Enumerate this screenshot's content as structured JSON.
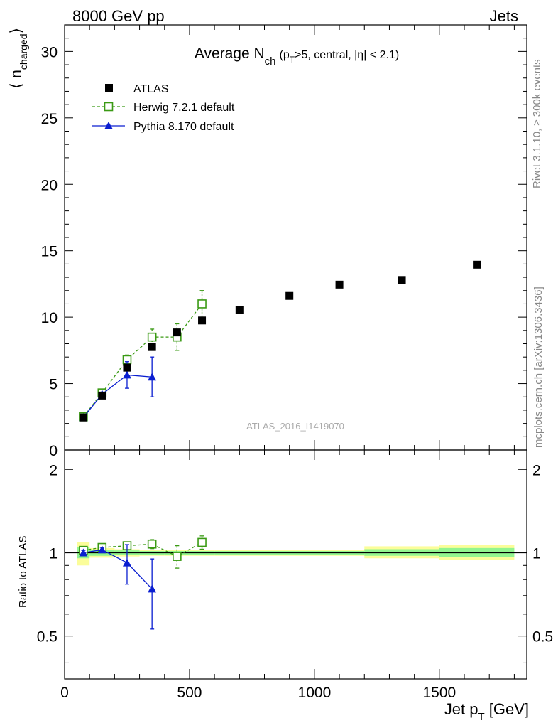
{
  "header": {
    "left": "8000 GeV pp",
    "right": "Jets"
  },
  "side_texts": {
    "rivet": "Rivet 3.1.10, ≥ 300k events",
    "mcplots": "mcplots.cern.ch [arXiv:1306.3436]"
  },
  "chart_data": [
    {
      "type": "scatter",
      "title": {
        "main": "Average N",
        "sub": "ch",
        "p": "(p",
        "psub": "T",
        "rest": ">5, central, |η| < 2.1)"
      },
      "watermark": "ATLAS_2016_I1419070",
      "ylabel": {
        "pre": "⟨ n",
        "sub": "charged",
        "post": "⟩"
      },
      "xlim": [
        0,
        1850
      ],
      "ylim": [
        0,
        32
      ],
      "yticks": [
        0,
        5,
        10,
        15,
        20,
        25,
        30
      ],
      "legend_position": "top-left",
      "series": [
        {
          "name": "ATLAS",
          "color": "#000000",
          "marker": "filled-square",
          "line": "none",
          "x": [
            75,
            150,
            250,
            350,
            450,
            550,
            700,
            900,
            1100,
            1350,
            1650
          ],
          "y": [
            2.45,
            4.1,
            6.2,
            7.75,
            8.85,
            9.75,
            10.55,
            11.6,
            12.45,
            12.8,
            13.95
          ]
        },
        {
          "name": "Herwig 7.2.1 default",
          "color": "#3a9a14",
          "marker": "open-square",
          "line": "dashed",
          "x": [
            75,
            150,
            250,
            350,
            450,
            550
          ],
          "y": [
            2.5,
            4.3,
            6.8,
            8.5,
            8.5,
            11.0
          ],
          "err": [
            0.15,
            0.25,
            0.35,
            0.6,
            1.0,
            1.0
          ]
        },
        {
          "name": "Pythia 8.170 default",
          "color": "#0a1ed0",
          "marker": "filled-triangle",
          "line": "solid",
          "x": [
            75,
            150,
            250,
            350
          ],
          "y": [
            2.45,
            4.2,
            5.65,
            5.5
          ],
          "err": [
            0.1,
            0.15,
            1.0,
            1.5
          ]
        }
      ]
    },
    {
      "type": "scatter",
      "ylabel": "Ratio to ATLAS",
      "xlabel": {
        "pre": "Jet p",
        "sub": "T",
        "post": " [GeV]"
      },
      "xlim": [
        0,
        1850
      ],
      "ylim": [
        0.35,
        2.35
      ],
      "yticks": [
        0.5,
        1,
        2
      ],
      "ytick_labels": [
        "0.5",
        "1",
        "2"
      ],
      "xticks": [
        0,
        500,
        1000,
        1500
      ],
      "xtick_labels": [
        "0",
        "500",
        "1000",
        "1500"
      ],
      "reference_line": 1,
      "bands": [
        {
          "xlo": 50,
          "xhi": 100,
          "green": [
            0.955,
            1.05
          ],
          "yellow": [
            0.9,
            1.09
          ]
        },
        {
          "xlo": 100,
          "xhi": 200,
          "green": [
            0.975,
            1.025
          ],
          "yellow": [
            0.96,
            1.04
          ]
        },
        {
          "xlo": 200,
          "xhi": 300,
          "green": [
            0.98,
            1.02
          ],
          "yellow": [
            0.97,
            1.03
          ]
        },
        {
          "xlo": 300,
          "xhi": 400,
          "green": [
            0.985,
            1.015
          ],
          "yellow": [
            0.975,
            1.025
          ]
        },
        {
          "xlo": 400,
          "xhi": 500,
          "green": [
            0.985,
            1.015
          ],
          "yellow": [
            0.975,
            1.025
          ]
        },
        {
          "xlo": 500,
          "xhi": 600,
          "green": [
            0.985,
            1.015
          ],
          "yellow": [
            0.975,
            1.025
          ]
        },
        {
          "xlo": 600,
          "xhi": 800,
          "green": [
            0.985,
            1.015
          ],
          "yellow": [
            0.975,
            1.025
          ]
        },
        {
          "xlo": 800,
          "xhi": 1000,
          "green": [
            0.985,
            1.015
          ],
          "yellow": [
            0.975,
            1.025
          ]
        },
        {
          "xlo": 1000,
          "xhi": 1200,
          "green": [
            0.985,
            1.015
          ],
          "yellow": [
            0.975,
            1.025
          ]
        },
        {
          "xlo": 1200,
          "xhi": 1500,
          "green": [
            0.975,
            1.03
          ],
          "yellow": [
            0.955,
            1.055
          ]
        },
        {
          "xlo": 1500,
          "xhi": 1800,
          "green": [
            0.965,
            1.04
          ],
          "yellow": [
            0.945,
            1.07
          ]
        }
      ],
      "series": [
        {
          "name": "Herwig 7.2.1 default",
          "color": "#3a9a14",
          "marker": "open-square",
          "line": "dashed",
          "x": [
            75,
            150,
            250,
            350,
            450,
            550
          ],
          "y": [
            1.02,
            1.045,
            1.06,
            1.075,
            0.97,
            1.09
          ],
          "err": [
            0.02,
            0.02,
            0.03,
            0.04,
            0.09,
            0.06
          ]
        },
        {
          "name": "Pythia 8.170 default",
          "color": "#0a1ed0",
          "marker": "filled-triangle",
          "line": "solid",
          "x": [
            75,
            150,
            250,
            350
          ],
          "y": [
            1.0,
            1.025,
            0.92,
            0.74
          ],
          "err": [
            0.02,
            0.02,
            0.15,
            0.21
          ]
        }
      ]
    }
  ]
}
